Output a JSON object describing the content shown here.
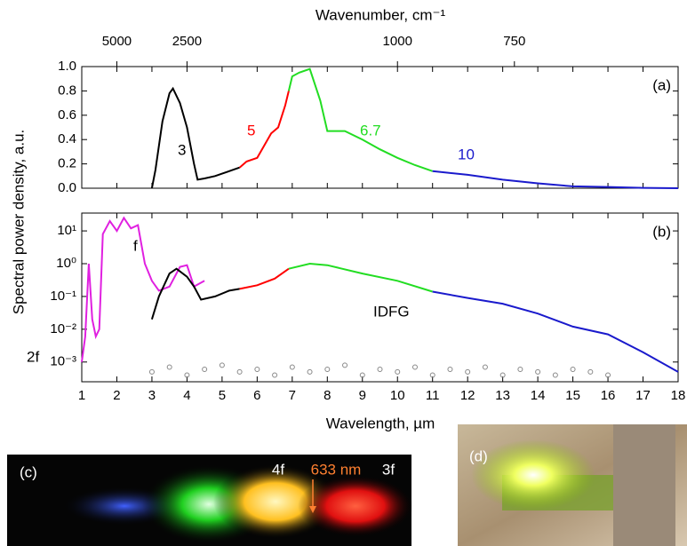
{
  "chart_data": [
    {
      "type": "line",
      "panel": "(a)",
      "y_label": "Spectral power density, a.u.",
      "x2_label": "Wavenumber, cm⁻¹",
      "x2ticks": [
        5000,
        2500,
        1000,
        750
      ],
      "xlim": [
        1,
        18
      ],
      "ylim": [
        0,
        1
      ],
      "yticks": [
        {
          "value": 0,
          "label": "0.0"
        },
        0.2,
        0.4,
        0.6,
        0.8,
        {
          "value": 1,
          "label": "1.0"
        }
      ],
      "series": [
        {
          "name": "3",
          "color": "#000000",
          "x": [
            3,
            3.1,
            3.3,
            3.5,
            3.6,
            3.8,
            4.0,
            4.2,
            4.3,
            4.5,
            4.8,
            5.0,
            5.3,
            5.5
          ],
          "values": [
            0,
            0.15,
            0.55,
            0.78,
            0.82,
            0.7,
            0.5,
            0.2,
            0.07,
            0.08,
            0.1,
            0.12,
            0.15,
            0.17
          ]
        },
        {
          "name": "5",
          "color": "#ff0000",
          "x": [
            5.5,
            5.7,
            6.0,
            6.2,
            6.4,
            6.6,
            6.8,
            6.9
          ],
          "values": [
            0.17,
            0.22,
            0.25,
            0.35,
            0.45,
            0.5,
            0.68,
            0.8
          ]
        },
        {
          "name": "6.7",
          "color": "#22dd22",
          "x": [
            6.9,
            7.0,
            7.2,
            7.5,
            7.8,
            8.0,
            8.5,
            9.0,
            9.5,
            10,
            10.5,
            11
          ],
          "values": [
            0.8,
            0.92,
            0.95,
            0.98,
            0.72,
            0.47,
            0.47,
            0.4,
            0.32,
            0.25,
            0.19,
            0.14
          ]
        },
        {
          "name": "10",
          "color": "#1a1acc",
          "x": [
            11,
            12,
            13,
            14,
            15,
            16,
            17,
            18
          ],
          "values": [
            0.14,
            0.11,
            0.07,
            0.04,
            0.015,
            0.01,
            0.003,
            0
          ]
        }
      ]
    },
    {
      "type": "line",
      "panel": "(b)",
      "x_label": "Wavelength, µm",
      "yscale": "log",
      "annotations": [
        "f",
        "2f",
        "IDFG"
      ],
      "xlim": [
        1,
        18
      ],
      "xticks": [
        1,
        2,
        3,
        4,
        5,
        6,
        7,
        8,
        9,
        10,
        11,
        12,
        13,
        14,
        15,
        16,
        17,
        18
      ],
      "ylim": [
        0.00025,
        35
      ],
      "yticks": [
        {
          "value": 0.001,
          "label": "10⁻³"
        },
        {
          "value": 0.01,
          "label": "10⁻²"
        },
        {
          "value": 0.1,
          "label": "10⁻¹"
        },
        {
          "value": 1,
          "label": "10⁰"
        },
        {
          "value": 10,
          "label": "10¹"
        }
      ],
      "series": [
        {
          "color": "#e020e0",
          "x": [
            1,
            1.1,
            1.2,
            1.3,
            1.4,
            1.5,
            1.6,
            1.8,
            2.0,
            2.2,
            2.4,
            2.6,
            2.8,
            3.0,
            3.2,
            3.5,
            3.8,
            4.0,
            4.2,
            4.5
          ],
          "values": [
            0.001,
            0.006,
            1.0,
            0.02,
            0.006,
            0.01,
            8,
            20,
            10,
            25,
            12,
            15,
            1,
            0.3,
            0.15,
            0.2,
            0.8,
            0.9,
            0.2,
            0.3
          ]
        },
        {
          "color": "#000000",
          "x": [
            3,
            3.2,
            3.5,
            3.7,
            4.0,
            4.2,
            4.4,
            4.8,
            5.2,
            5.5
          ],
          "values": [
            0.02,
            0.1,
            0.5,
            0.7,
            0.4,
            0.2,
            0.08,
            0.1,
            0.15,
            0.17
          ]
        },
        {
          "color": "#ff0000",
          "x": [
            5.5,
            6,
            6.5,
            6.9
          ],
          "values": [
            0.17,
            0.22,
            0.35,
            0.7
          ]
        },
        {
          "color": "#22dd22",
          "x": [
            6.9,
            7.5,
            8,
            9,
            10,
            11
          ],
          "values": [
            0.7,
            1.0,
            0.9,
            0.5,
            0.3,
            0.14
          ]
        },
        {
          "color": "#1a1acc",
          "x": [
            11,
            12,
            13,
            14,
            15,
            16,
            17,
            18
          ],
          "values": [
            0.14,
            0.09,
            0.06,
            0.03,
            0.012,
            0.007,
            0.002,
            0.0005
          ]
        },
        {
          "color": "#888888",
          "marker": "circle-open",
          "x": [
            3,
            3.5,
            4,
            4.5,
            5,
            5.5,
            6,
            6.5,
            7,
            7.5,
            8,
            8.5,
            9,
            9.5,
            10,
            10.5,
            11,
            11.5,
            12,
            12.5,
            13,
            13.5,
            14,
            14.5,
            15,
            15.5,
            16
          ],
          "values": [
            0.0005,
            0.0007,
            0.0004,
            0.0006,
            0.0008,
            0.0005,
            0.0006,
            0.0004,
            0.0007,
            0.0005,
            0.0006,
            0.0008,
            0.0004,
            0.0006,
            0.0005,
            0.0007,
            0.0004,
            0.0006,
            0.0005,
            0.0007,
            0.0004,
            0.0006,
            0.0005,
            0.0004,
            0.0006,
            0.0005,
            0.0004
          ]
        }
      ]
    }
  ],
  "photos": [
    {
      "label": "(c)",
      "texts": [
        "4f",
        "633 nm",
        "3f"
      ]
    },
    {
      "label": "(d)"
    }
  ]
}
